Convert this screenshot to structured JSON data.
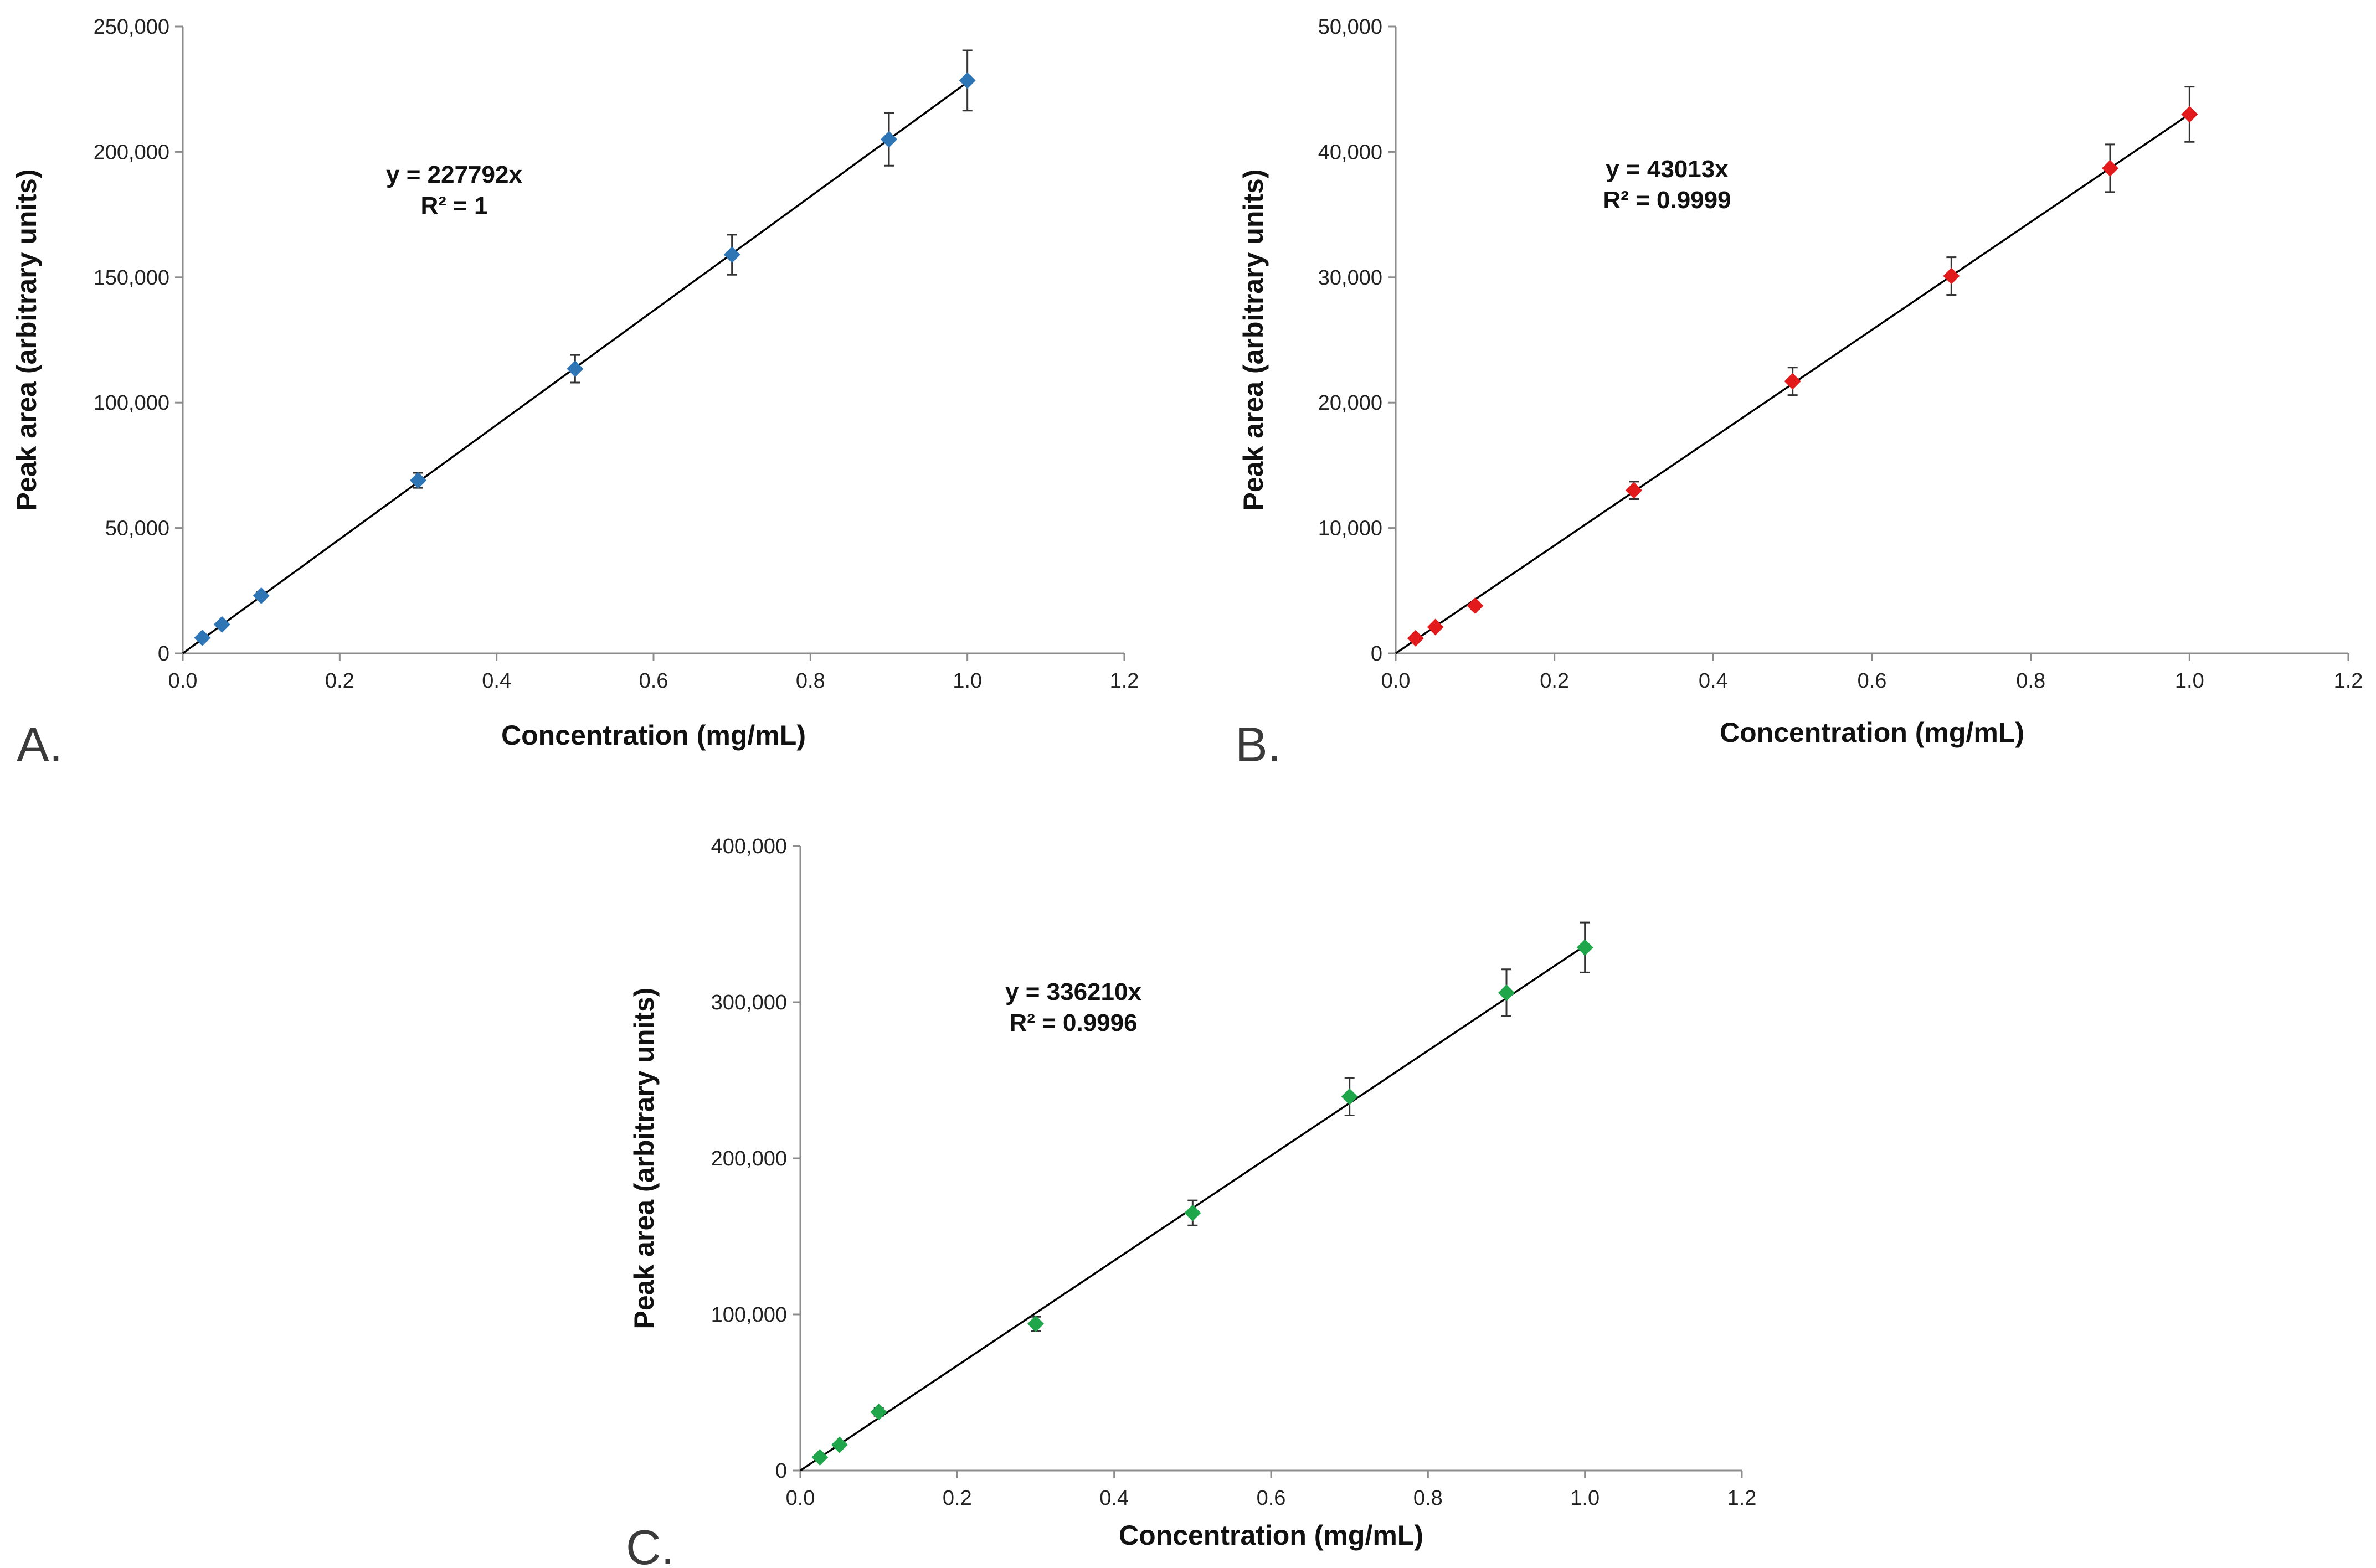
{
  "chart_data": [
    {
      "type": "scatter",
      "panel_label": "A.",
      "xlabel": "Concentration (mg/mL)",
      "ylabel": "Peak area (arbitrary units)",
      "xlim": [
        0,
        1.2
      ],
      "ylim": [
        0,
        250000
      ],
      "x_ticks": [
        "0.0",
        "0.2",
        "0.4",
        "0.6",
        "0.8",
        "1.0",
        "1.2"
      ],
      "y_ticks": [
        "0",
        "50,000",
        "100,000",
        "150,000",
        "200,000",
        "250,000"
      ],
      "equation": "y = 227792x",
      "r_squared": "R² = 1",
      "slope": 227792,
      "marker_color": "#2E75B6",
      "series": [
        {
          "name": "Peak area",
          "x": [
            0.025,
            0.05,
            0.1,
            0.3,
            0.5,
            0.7,
            0.9,
            1.0
          ],
          "y": [
            6200,
            11500,
            23000,
            69000,
            113500,
            159000,
            205000,
            228500
          ],
          "error": [
            500,
            800,
            1500,
            3000,
            5500,
            8000,
            10500,
            12000
          ]
        }
      ]
    },
    {
      "type": "scatter",
      "panel_label": "B.",
      "xlabel": "Concentration (mg/mL)",
      "ylabel": "Peak area (arbitrary units)",
      "xlim": [
        0,
        1.2
      ],
      "ylim": [
        0,
        50000
      ],
      "x_ticks": [
        "0.0",
        "0.2",
        "0.4",
        "0.6",
        "0.8",
        "1.0",
        "1.2"
      ],
      "y_ticks": [
        "0",
        "10,000",
        "20,000",
        "30,000",
        "40,000",
        "50,000"
      ],
      "equation": "y = 43013x",
      "r_squared": "R² = 0.9999",
      "slope": 43013,
      "marker_color": "#E31A1C",
      "series": [
        {
          "name": "Peak area",
          "x": [
            0.025,
            0.05,
            0.1,
            0.3,
            0.5,
            0.7,
            0.9,
            1.0
          ],
          "y": [
            1200,
            2100,
            3800,
            13000,
            21700,
            30100,
            38700,
            43000
          ],
          "error": [
            100,
            150,
            250,
            700,
            1100,
            1500,
            1900,
            2200
          ]
        }
      ]
    },
    {
      "type": "scatter",
      "panel_label": "C.",
      "xlabel": "Concentration (mg/mL)",
      "ylabel": "Peak area (arbitrary units)",
      "xlim": [
        0,
        1.2
      ],
      "ylim": [
        0,
        400000
      ],
      "x_ticks": [
        "0.0",
        "0.2",
        "0.4",
        "0.6",
        "0.8",
        "1.0",
        "1.2"
      ],
      "y_ticks": [
        "0",
        "100,000",
        "200,000",
        "300,000",
        "400,000"
      ],
      "equation": "y = 336210x",
      "r_squared": "R² = 0.9996",
      "slope": 336210,
      "marker_color": "#1FA64A",
      "series": [
        {
          "name": "Peak area",
          "x": [
            0.025,
            0.05,
            0.1,
            0.3,
            0.5,
            0.7,
            0.9,
            1.0
          ],
          "y": [
            8500,
            16500,
            37500,
            94000,
            165000,
            239500,
            306000,
            335000
          ],
          "error": [
            800,
            1500,
            2500,
            4500,
            8000,
            12000,
            15000,
            16000
          ]
        }
      ]
    }
  ]
}
